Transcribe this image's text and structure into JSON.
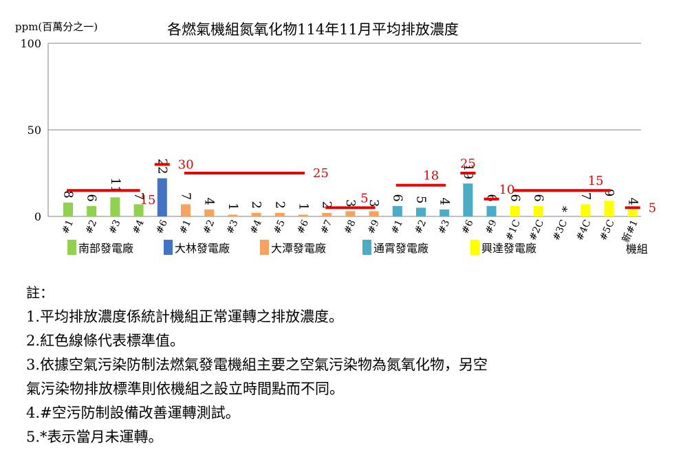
{
  "chart_data": {
    "type": "bar",
    "title": "各燃氣機組氮氧化物114年11月平均排放濃度",
    "ylabel": "ppm(百萬分之一)",
    "xlabel": "機組",
    "ylim": [
      0,
      100
    ],
    "yticks": [
      0,
      50,
      100
    ],
    "grid": true,
    "colors": {
      "南部發電廠": "#92D050",
      "大林發電廠": "#4472C4",
      "大潭發電廠": "#F4A460",
      "通霄發電廠": "#4BACC6",
      "興達發電廠": "#FFFF00",
      "standard": "#E60000"
    },
    "groups": [
      {
        "name": "南部發電廠",
        "units": [
          {
            "label": "#1",
            "value": 8,
            "text": "8"
          },
          {
            "label": "#2",
            "value": 6,
            "text": "6"
          },
          {
            "label": "#3",
            "value": 11,
            "text": "11"
          },
          {
            "label": "#4",
            "value": 7,
            "text": "7"
          }
        ]
      },
      {
        "name": "大林發電廠",
        "units": [
          {
            "label": "#6",
            "value": 22,
            "text": "22"
          }
        ]
      },
      {
        "name": "大潭發電廠",
        "units": [
          {
            "label": "#1",
            "value": 7,
            "text": "7"
          },
          {
            "label": "#2",
            "value": 4,
            "text": "4"
          },
          {
            "label": "#3",
            "value": 1,
            "text": "1"
          },
          {
            "label": "#4",
            "value": 2,
            "text": "2"
          },
          {
            "label": "#5",
            "value": 2,
            "text": "2"
          },
          {
            "label": "#6",
            "value": 1,
            "text": "1"
          },
          {
            "label": "#7",
            "value": 2,
            "text": "2"
          },
          {
            "label": "#8",
            "value": 3,
            "text": "3"
          },
          {
            "label": "#9",
            "value": 3,
            "text": "3"
          }
        ]
      },
      {
        "name": "通霄發電廠",
        "units": [
          {
            "label": "#1",
            "value": 6,
            "text": "6"
          },
          {
            "label": "#2",
            "value": 5,
            "text": "5"
          },
          {
            "label": "#3",
            "value": 4,
            "text": "4"
          },
          {
            "label": "#6",
            "value": 19,
            "text": "19"
          },
          {
            "label": "#9",
            "value": 6,
            "text": "6"
          }
        ]
      },
      {
        "name": "興達發電廠",
        "units": [
          {
            "label": "#1C",
            "value": 6,
            "text": "6"
          },
          {
            "label": "#2C",
            "value": 6,
            "text": "6"
          },
          {
            "label": "#3C",
            "value": 0,
            "text": "*"
          },
          {
            "label": "#4C",
            "value": 7,
            "text": "7"
          },
          {
            "label": "#5C",
            "value": 9,
            "text": "9"
          },
          {
            "label": "新#1",
            "value": 4,
            "text": "4"
          }
        ]
      }
    ],
    "standards": [
      {
        "value": 15,
        "from": 0,
        "to": 3,
        "label": "15",
        "label_pos": "below-end"
      },
      {
        "value": 30,
        "from": 4,
        "to": 4,
        "label": "30",
        "label_pos": "right"
      },
      {
        "value": 25,
        "from": 5,
        "to": 10,
        "label": "25",
        "label_pos": "right"
      },
      {
        "value": 5,
        "from": 11,
        "to": 13,
        "label": "5",
        "label_pos": "above-end"
      },
      {
        "value": 18,
        "from": 14,
        "to": 16,
        "label": "18",
        "label_pos": "above-end"
      },
      {
        "value": 25,
        "from": 17,
        "to": 17,
        "label": "25",
        "label_pos": "above"
      },
      {
        "value": 10,
        "from": 18,
        "to": 18,
        "label": "10",
        "label_pos": "above-right"
      },
      {
        "value": 15,
        "from": 19,
        "to": 23,
        "label": "15",
        "label_pos": "above-end"
      },
      {
        "value": 5,
        "from": 24,
        "to": 24,
        "label": "5",
        "label_pos": "right"
      }
    ]
  },
  "notes": {
    "heading": "註：",
    "lines": [
      "1.平均排放濃度係統計機組正常運轉之排放濃度。",
      "2.紅色線條代表標準值。",
      "3.依據空氣污染防制法燃氣發電機組主要之空氣污染物為氮氧化物，另空",
      "氣污染物排放標準則依機組之設立時間點而不同。",
      "4.#空污防制設備改善運轉測試。",
      "5.*表示當月未運轉。"
    ]
  }
}
